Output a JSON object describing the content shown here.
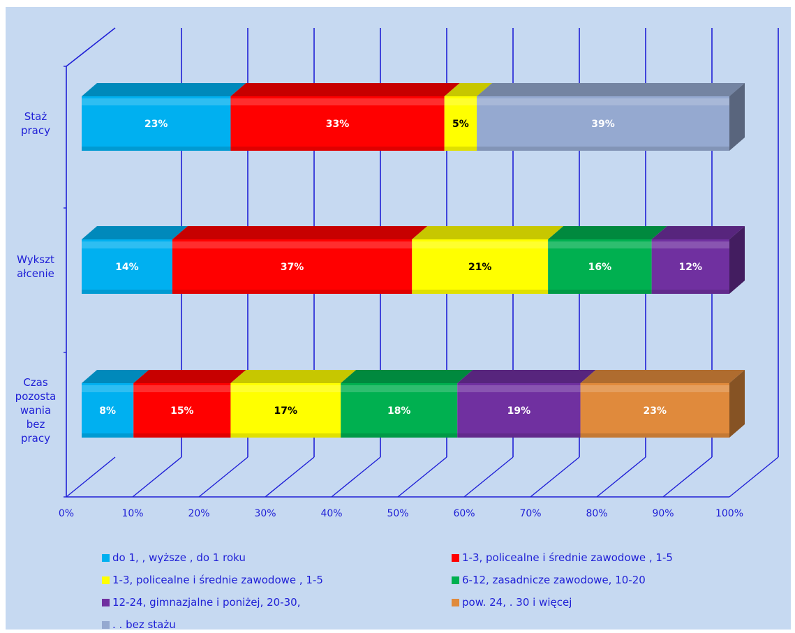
{
  "chart_data": {
    "type": "bar",
    "stacked": true,
    "orientation": "horizontal",
    "three_d": true,
    "categories": [
      "Staż\npracy",
      "Wykszt\nałcenie",
      "Czas\npozosta\nwania\nbez\npracy"
    ],
    "xlim": [
      0,
      100
    ],
    "x_ticks": [
      "0%",
      "10%",
      "20%",
      "30%",
      "40%",
      "50%",
      "60%",
      "70%",
      "80%",
      "90%",
      "100%"
    ],
    "grid": true,
    "legend_position": "bottom",
    "series": [
      {
        "name": "do 1,  , wyższe , do 1 roku",
        "color": "#00b0f0",
        "values": [
          23,
          14,
          8
        ]
      },
      {
        "name": "1-3,  policealne i średnie zawodowe , 1-5",
        "color": "#ff0000",
        "values": [
          33,
          37,
          15
        ]
      },
      {
        "name": "1-3,  policealne i średnie zawodowe , 1-5",
        "color": "#ffff00",
        "values": [
          5,
          21,
          17
        ]
      },
      {
        "name": "6-12,  zasadnicze zawodowe,  10-20",
        "color": "#00b050",
        "values": [
          0,
          16,
          18
        ]
      },
      {
        "name": "12-24, gimnazjalne i poniżej,  20-30,",
        "color": "#7030a0",
        "values": [
          0,
          12,
          19
        ]
      },
      {
        "name": "pow. 24, . 30 i więcej",
        "color": "#e08a3c",
        "values": [
          0,
          0,
          23
        ]
      },
      {
        "name": ". . bez stażu",
        "color": "#95a9d0",
        "values": [
          39,
          0,
          0
        ]
      }
    ],
    "data_labels": [
      [
        "23%",
        "33%",
        "5%",
        "",
        "",
        "",
        "39%"
      ],
      [
        "14%",
        "37%",
        "21%",
        "16%",
        "12%",
        "",
        ""
      ],
      [
        "8%",
        "15%",
        "17%",
        "18%",
        "19%",
        "23%",
        ""
      ]
    ]
  }
}
